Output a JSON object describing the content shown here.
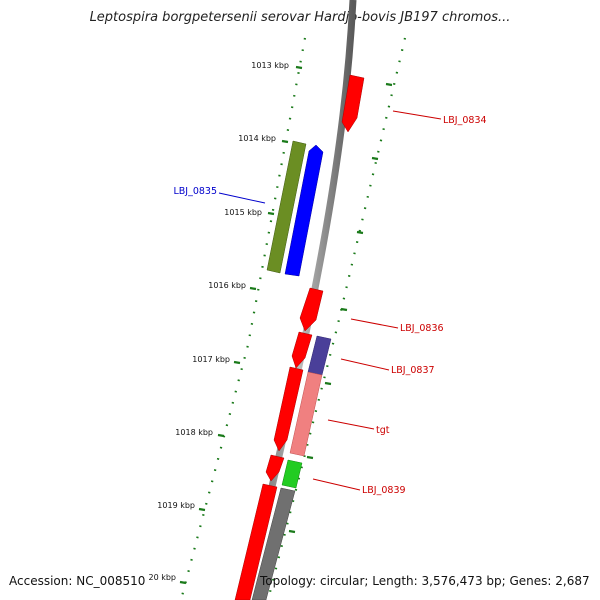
{
  "header": {
    "title": "Leptospira borgpetersenii serovar Hardjo-bovis JB197 chromos..."
  },
  "footer": {
    "accession": "Accession: NC_008510",
    "stats": "Topology: circular; Length: 3,576,473 bp; Genes: 2,687"
  },
  "ticks": [
    {
      "label": "1013 kbp"
    },
    {
      "label": "1014 kbp"
    },
    {
      "label": "1015 kbp"
    },
    {
      "label": "1016 kbp"
    },
    {
      "label": "1017 kbp"
    },
    {
      "label": "1018 kbp"
    },
    {
      "label": "1019 kbp"
    },
    {
      "label": "20 kbp"
    }
  ],
  "genes": [
    {
      "name": "LBJ_0834",
      "color": "#cc0000"
    },
    {
      "name": "LBJ_0835",
      "color": "#0000cc"
    },
    {
      "name": "LBJ_0836",
      "color": "#cc0000"
    },
    {
      "name": "LBJ_0837",
      "color": "#cc0000"
    },
    {
      "name": "tgt",
      "color": "#cc0000"
    },
    {
      "name": "LBJ_0839",
      "color": "#cc0000"
    }
  ],
  "colors": {
    "forward_cds": "#ff0000",
    "reverse_cds": "#0000ff",
    "olive_feature": "#6b8e23",
    "green_feature": "#22cc22",
    "purple_feature": "#4a3f99",
    "pink_feature": "#f08080",
    "gray_feature": "#707070",
    "backbone": "#808080",
    "tick_marks": "#1a7a1a"
  }
}
